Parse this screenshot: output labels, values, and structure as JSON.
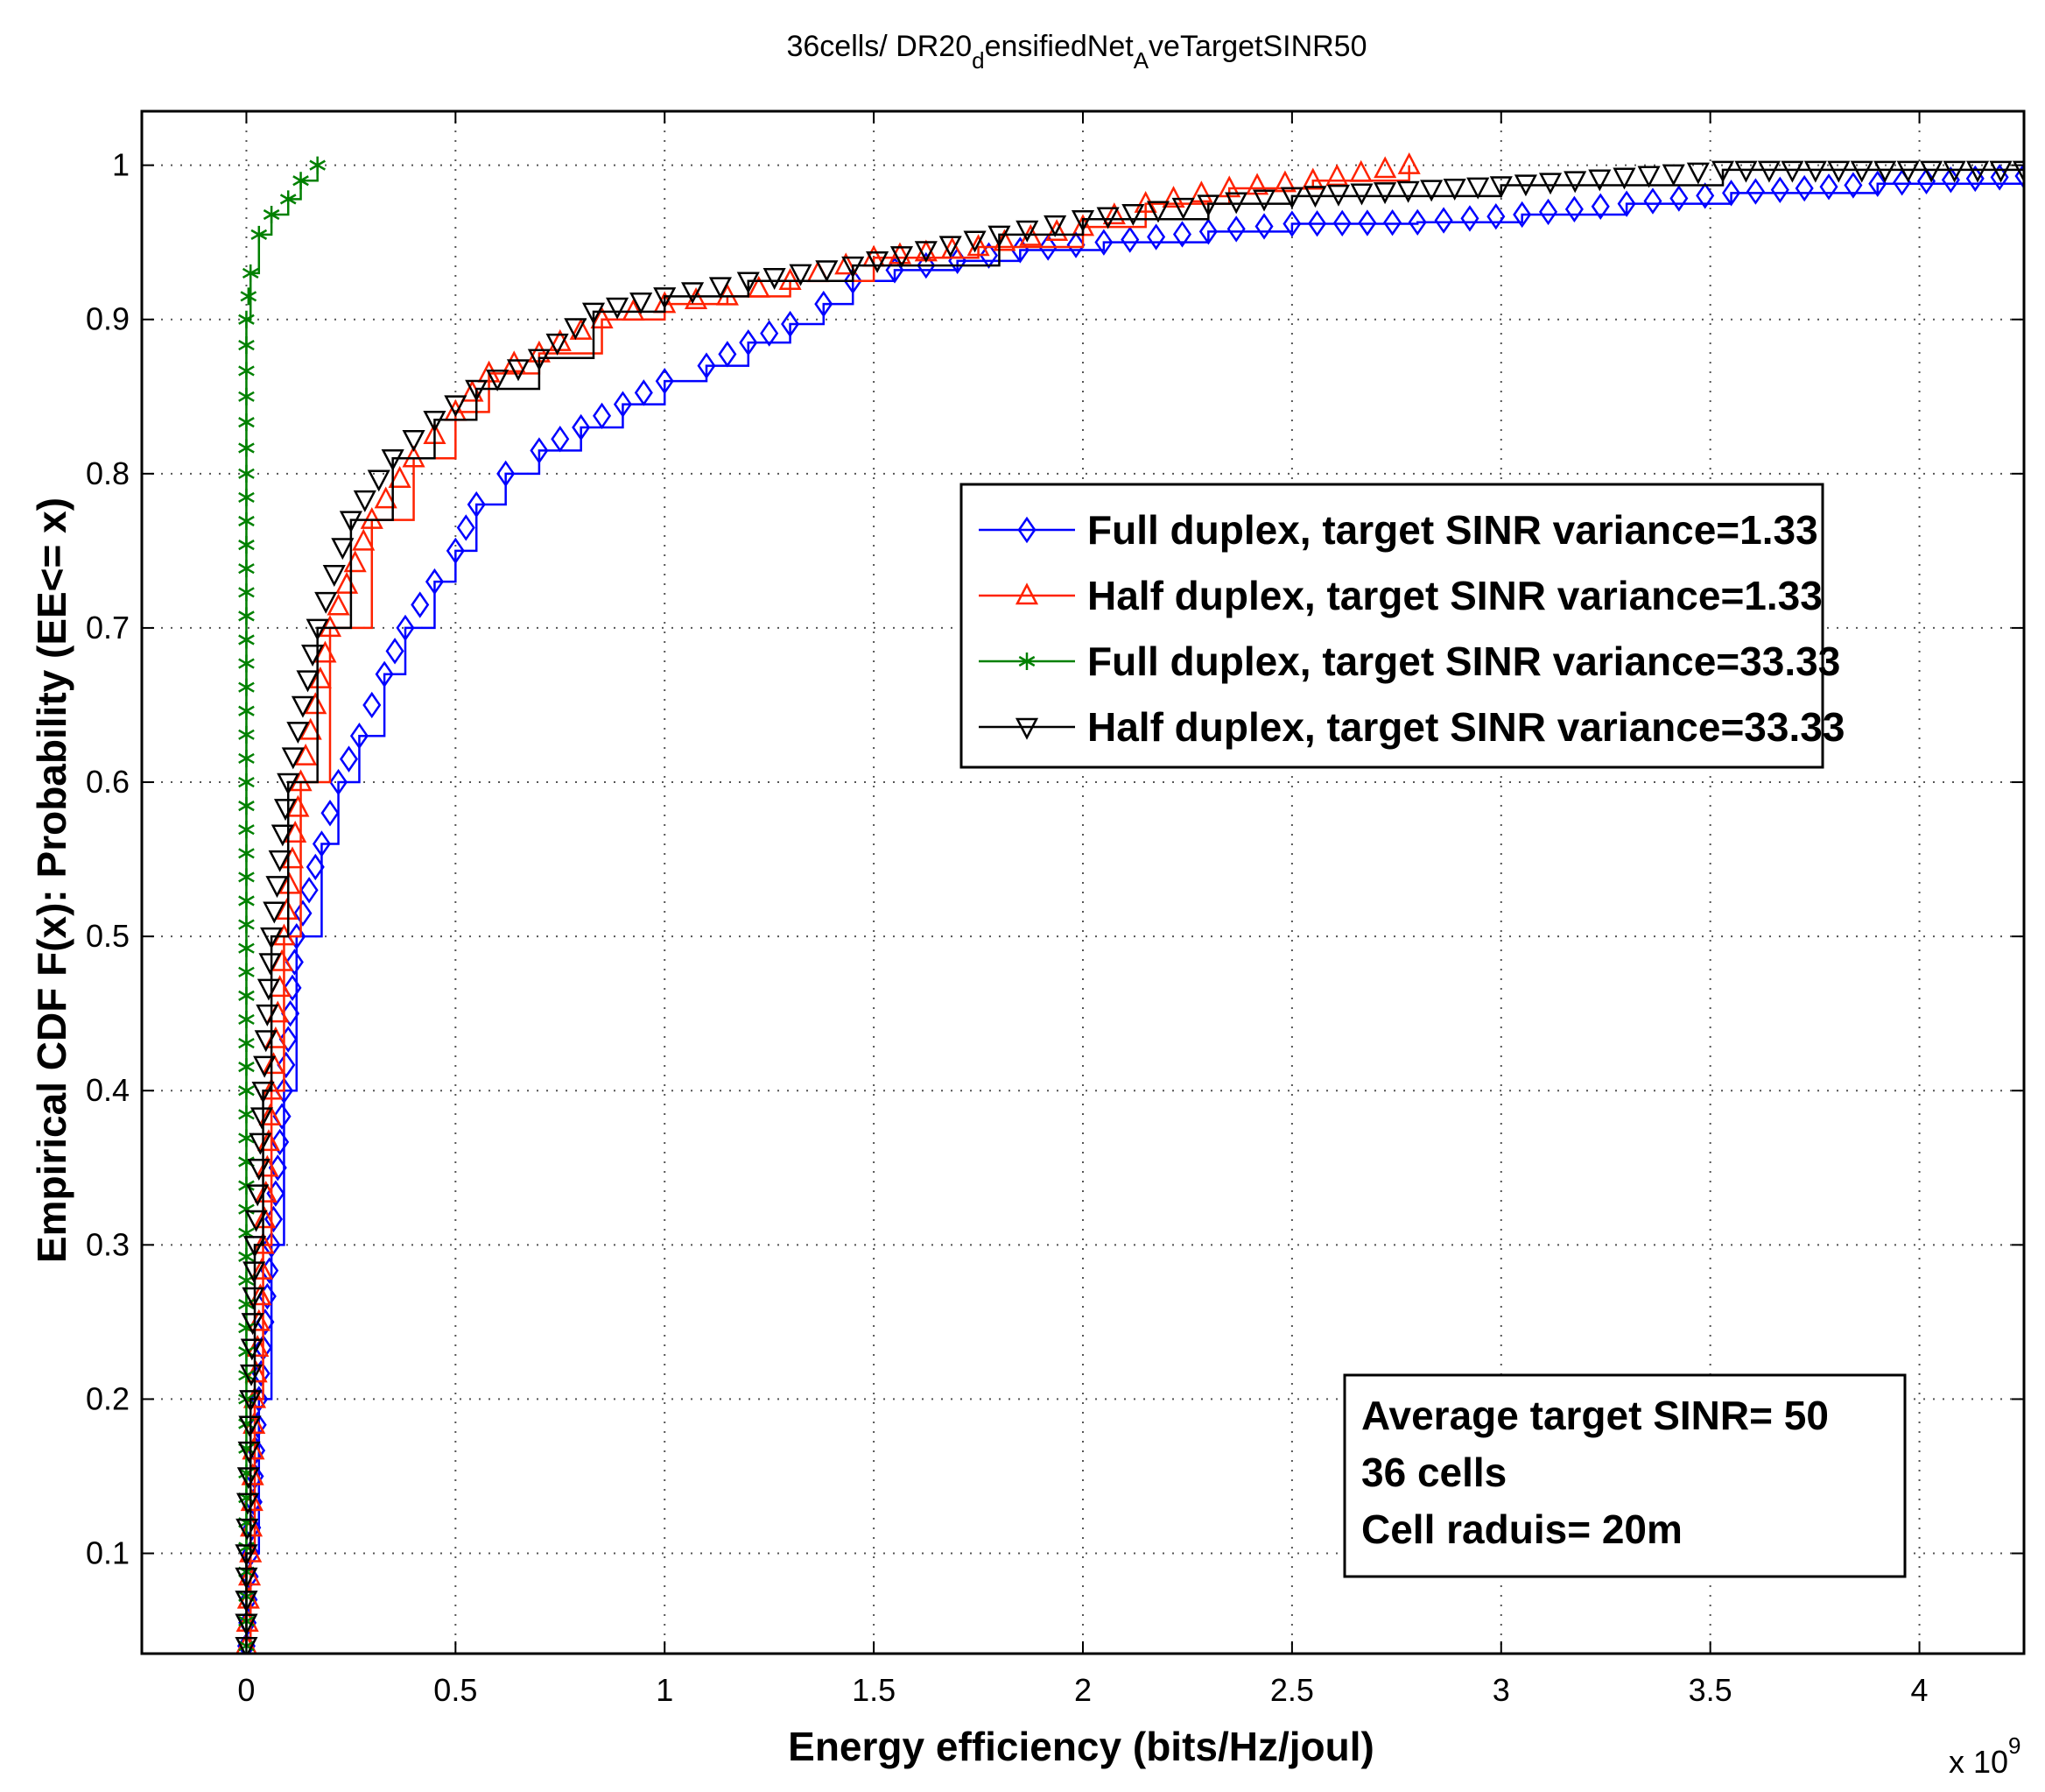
{
  "chart_data": {
    "type": "line",
    "title": "36cells/ DR20",
    "title_sub1": "d",
    "title_mid": "ensifiedNet",
    "title_sub2": "A",
    "title_end": "veTargetSINR50",
    "xlabel": "Energy efficiency (bits/Hz/joul)",
    "ylabel": "Empirical CDF F(x): Probability (EE<= x)",
    "x_multiplier_base": "x 10",
    "x_multiplier_exp": "9",
    "xlim": [
      -0.25,
      4.25
    ],
    "ylim": [
      0.035,
      1.035
    ],
    "grid": true,
    "legend_position": "center-right",
    "x_ticks": [
      0,
      0.5,
      1,
      1.5,
      2,
      2.5,
      3,
      3.5,
      4
    ],
    "x_tick_labels": [
      "0",
      "0.5",
      "1",
      "1.5",
      "2",
      "2.5",
      "3",
      "3.5",
      "4"
    ],
    "y_ticks": [
      0.1,
      0.2,
      0.3,
      0.4,
      0.5,
      0.6,
      0.7,
      0.8,
      0.9,
      1.0
    ],
    "y_tick_labels": [
      "0.1",
      "0.2",
      "0.3",
      "0.4",
      "0.5",
      "0.6",
      "0.7",
      "0.8",
      "0.9",
      "1"
    ],
    "series": [
      {
        "name": "Full duplex, target SINR variance=1.33",
        "color": "#0000ff",
        "marker": "diamond",
        "points": [
          [
            0,
            0.04
          ],
          [
            0.01,
            0.1
          ],
          [
            0.03,
            0.2
          ],
          [
            0.06,
            0.3
          ],
          [
            0.09,
            0.4
          ],
          [
            0.12,
            0.5
          ],
          [
            0.18,
            0.56
          ],
          [
            0.22,
            0.6
          ],
          [
            0.27,
            0.63
          ],
          [
            0.33,
            0.67
          ],
          [
            0.38,
            0.7
          ],
          [
            0.45,
            0.73
          ],
          [
            0.5,
            0.75
          ],
          [
            0.55,
            0.78
          ],
          [
            0.62,
            0.8
          ],
          [
            0.7,
            0.815
          ],
          [
            0.8,
            0.83
          ],
          [
            0.9,
            0.845
          ],
          [
            1.0,
            0.86
          ],
          [
            1.1,
            0.87
          ],
          [
            1.2,
            0.885
          ],
          [
            1.3,
            0.897
          ],
          [
            1.38,
            0.91
          ],
          [
            1.45,
            0.925
          ],
          [
            1.55,
            0.932
          ],
          [
            1.7,
            0.938
          ],
          [
            1.85,
            0.945
          ],
          [
            2.05,
            0.95
          ],
          [
            2.3,
            0.957
          ],
          [
            2.5,
            0.962
          ],
          [
            2.8,
            0.963
          ],
          [
            3.05,
            0.968
          ],
          [
            3.3,
            0.975
          ],
          [
            3.55,
            0.982
          ],
          [
            3.9,
            0.988
          ],
          [
            4.25,
            0.993
          ]
        ]
      },
      {
        "name": "Half duplex, target SINR variance=1.33",
        "color": "#ff2200",
        "marker": "triangle-up",
        "points": [
          [
            0,
            0.04
          ],
          [
            0.01,
            0.1
          ],
          [
            0.02,
            0.2
          ],
          [
            0.04,
            0.3
          ],
          [
            0.06,
            0.4
          ],
          [
            0.09,
            0.5
          ],
          [
            0.13,
            0.6
          ],
          [
            0.2,
            0.7
          ],
          [
            0.3,
            0.77
          ],
          [
            0.4,
            0.81
          ],
          [
            0.5,
            0.84
          ],
          [
            0.58,
            0.865
          ],
          [
            0.7,
            0.878
          ],
          [
            0.85,
            0.9
          ],
          [
            1.0,
            0.91
          ],
          [
            1.15,
            0.915
          ],
          [
            1.3,
            0.925
          ],
          [
            1.5,
            0.94
          ],
          [
            1.75,
            0.947
          ],
          [
            2.0,
            0.96
          ],
          [
            2.15,
            0.975
          ],
          [
            2.35,
            0.985
          ],
          [
            2.55,
            0.99
          ],
          [
            2.78,
            1.0
          ]
        ]
      },
      {
        "name": "Full duplex, target SINR variance=33.33",
        "color": "#008000",
        "marker": "asterisk",
        "points": [
          [
            0,
            0.04
          ],
          [
            0.0,
            0.2
          ],
          [
            0.0,
            0.4
          ],
          [
            0.0,
            0.6
          ],
          [
            0.0,
            0.8
          ],
          [
            0.0,
            0.9
          ],
          [
            0.01,
            0.93
          ],
          [
            0.03,
            0.955
          ],
          [
            0.06,
            0.968
          ],
          [
            0.1,
            0.978
          ],
          [
            0.13,
            0.99
          ],
          [
            0.17,
            1.0
          ]
        ]
      },
      {
        "name": "Half duplex, target SINR variance=33.33",
        "color": "#000000",
        "marker": "triangle-down",
        "points": [
          [
            0,
            0.04
          ],
          [
            0.0,
            0.1
          ],
          [
            0.01,
            0.2
          ],
          [
            0.02,
            0.3
          ],
          [
            0.04,
            0.4
          ],
          [
            0.06,
            0.5
          ],
          [
            0.1,
            0.6
          ],
          [
            0.17,
            0.7
          ],
          [
            0.25,
            0.77
          ],
          [
            0.35,
            0.81
          ],
          [
            0.45,
            0.835
          ],
          [
            0.55,
            0.855
          ],
          [
            0.7,
            0.875
          ],
          [
            0.83,
            0.905
          ],
          [
            1.0,
            0.915
          ],
          [
            1.2,
            0.925
          ],
          [
            1.45,
            0.935
          ],
          [
            1.8,
            0.955
          ],
          [
            2.0,
            0.965
          ],
          [
            2.3,
            0.975
          ],
          [
            2.5,
            0.98
          ],
          [
            3.0,
            0.987
          ],
          [
            3.53,
            0.997
          ],
          [
            4.25,
            0.997
          ]
        ]
      }
    ],
    "annotation": [
      "Average target SINR= 50",
      "36 cells",
      "Cell raduis= 20m"
    ]
  }
}
